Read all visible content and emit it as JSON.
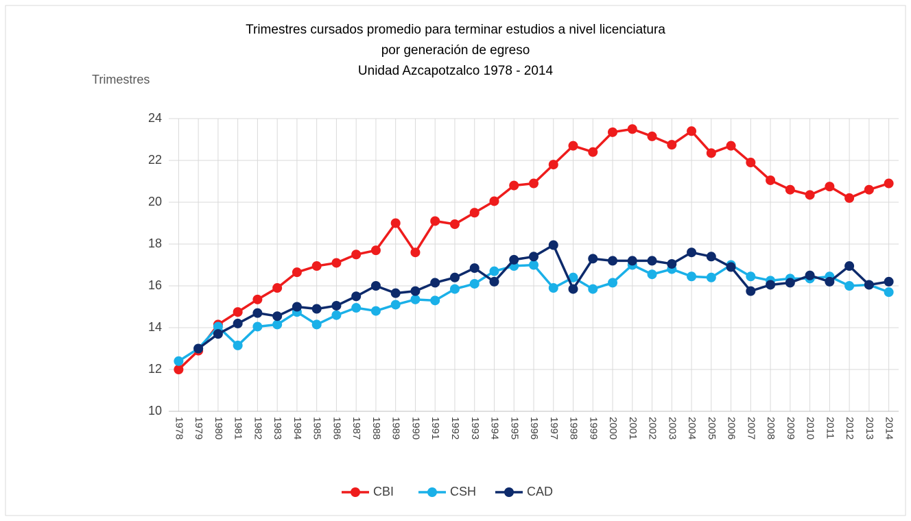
{
  "chart_data": {
    "type": "line",
    "title": [
      "Trimestres cursados promedio para terminar estudios a nivel licenciatura",
      "por generación de egreso",
      "Unidad Azcapotzalco 1978 - 2014"
    ],
    "y_label": "Trimestres",
    "categories": [
      "1978",
      "1979",
      "1980",
      "1981",
      "1982",
      "1983",
      "1984",
      "1985",
      "1986",
      "1987",
      "1988",
      "1989",
      "1990",
      "1991",
      "1992",
      "1993",
      "1994",
      "1995",
      "1996",
      "1997",
      "1998",
      "1999",
      "2000",
      "2001",
      "2002",
      "2003",
      "2004",
      "2005",
      "2006",
      "2007",
      "2008",
      "2009",
      "2010",
      "2011",
      "2012",
      "2013",
      "2014"
    ],
    "series": [
      {
        "name": "CBI",
        "color": "#ee1c1c",
        "values": [
          12.0,
          12.9,
          14.15,
          14.75,
          15.35,
          15.9,
          16.65,
          16.95,
          17.1,
          17.5,
          17.7,
          19.0,
          17.6,
          19.1,
          18.95,
          19.5,
          20.05,
          20.8,
          20.9,
          21.8,
          22.7,
          22.4,
          23.35,
          23.5,
          23.15,
          22.75,
          23.4,
          22.35,
          22.7,
          21.9,
          21.05,
          20.6,
          20.35,
          20.75,
          20.2,
          20.6,
          20.9
        ]
      },
      {
        "name": "CSH",
        "color": "#1ab0e8",
        "values": [
          12.4,
          13.0,
          14.05,
          13.15,
          14.05,
          14.15,
          14.75,
          14.15,
          14.6,
          14.95,
          14.8,
          15.1,
          15.35,
          15.3,
          15.85,
          16.1,
          16.7,
          16.95,
          17.0,
          15.9,
          16.4,
          15.85,
          16.15,
          17.0,
          16.55,
          16.8,
          16.45,
          16.4,
          17.0,
          16.45,
          16.25,
          16.35,
          16.35,
          16.45,
          16.0,
          16.05,
          15.7
        ]
      },
      {
        "name": "CAD",
        "color": "#0d2a6b",
        "values": [
          null,
          13.0,
          13.7,
          14.2,
          14.7,
          14.55,
          15.0,
          14.9,
          15.05,
          15.5,
          16.0,
          15.65,
          15.75,
          16.15,
          16.4,
          16.85,
          16.2,
          17.25,
          17.4,
          17.95,
          15.85,
          17.3,
          17.2,
          17.2,
          17.2,
          17.05,
          17.6,
          17.4,
          16.9,
          15.75,
          16.05,
          16.15,
          16.5,
          16.2,
          16.95,
          16.05,
          16.2
        ]
      }
    ],
    "ylim": [
      10,
      24
    ],
    "yticks": [
      10,
      12,
      14,
      16,
      18,
      20,
      22,
      24
    ],
    "grid": true,
    "legend": "bottom"
  }
}
